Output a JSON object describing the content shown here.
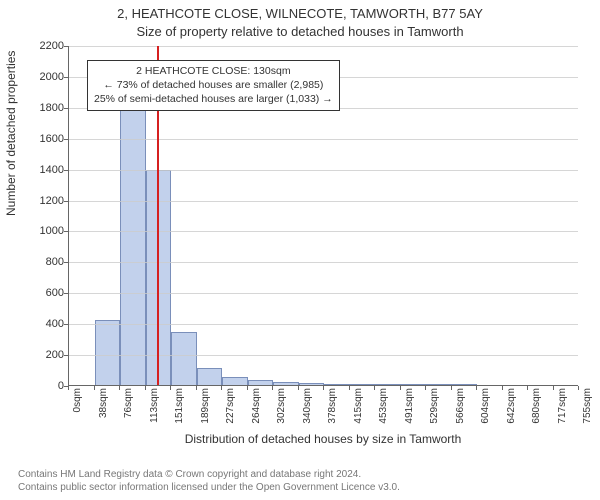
{
  "title_line1": "2, HEATHCOTE CLOSE, WILNECOTE, TAMWORTH, B77 5AY",
  "title_line2": "Size of property relative to detached houses in Tamworth",
  "chart": {
    "type": "histogram",
    "ylabel": "Number of detached properties",
    "xlabel": "Distribution of detached houses by size in Tamworth",
    "ylim": [
      0,
      2200
    ],
    "yticks": [
      0,
      200,
      400,
      600,
      800,
      1000,
      1200,
      1400,
      1600,
      1800,
      2000,
      2200
    ],
    "xtick_labels": [
      "0sqm",
      "38sqm",
      "76sqm",
      "113sqm",
      "151sqm",
      "189sqm",
      "227sqm",
      "264sqm",
      "302sqm",
      "340sqm",
      "378sqm",
      "415sqm",
      "453sqm",
      "491sqm",
      "529sqm",
      "566sqm",
      "604sqm",
      "642sqm",
      "680sqm",
      "717sqm",
      "755sqm"
    ],
    "bins": [
      {
        "x_index": 0,
        "value": 0
      },
      {
        "x_index": 1,
        "value": 420
      },
      {
        "x_index": 2,
        "value": 1820
      },
      {
        "x_index": 3,
        "value": 1390
      },
      {
        "x_index": 4,
        "value": 340
      },
      {
        "x_index": 5,
        "value": 110
      },
      {
        "x_index": 6,
        "value": 50
      },
      {
        "x_index": 7,
        "value": 30
      },
      {
        "x_index": 8,
        "value": 22
      },
      {
        "x_index": 9,
        "value": 12
      },
      {
        "x_index": 10,
        "value": 8
      },
      {
        "x_index": 11,
        "value": 5
      },
      {
        "x_index": 12,
        "value": 4
      },
      {
        "x_index": 13,
        "value": 3
      },
      {
        "x_index": 14,
        "value": 2
      },
      {
        "x_index": 15,
        "value": 2
      },
      {
        "x_index": 16,
        "value": 0
      },
      {
        "x_index": 17,
        "value": 0
      },
      {
        "x_index": 18,
        "value": 0
      },
      {
        "x_index": 19,
        "value": 0
      }
    ],
    "bar_fill": "#c2d1ec",
    "bar_stroke": "#7a8fba",
    "grid_color": "#cccccc",
    "background_color": "#ffffff",
    "reference_line": {
      "value_sqm": 130,
      "color": "#d62020"
    },
    "annotation": {
      "line1": "2 HEATHCOTE CLOSE: 130sqm",
      "line2": "← 73% of detached houses are smaller (2,985)",
      "line3": "25% of semi-detached houses are larger (1,033) →",
      "border_color": "#333333",
      "bg": "#ffffff"
    },
    "tick_fontsize": 11,
    "xtick_fontsize": 10,
    "label_fontsize": 12,
    "title_fontsize": 13
  },
  "footer": {
    "line1": "Contains HM Land Registry data © Crown copyright and database right 2024.",
    "line2": "Contains public sector information licensed under the Open Government Licence v3.0."
  }
}
